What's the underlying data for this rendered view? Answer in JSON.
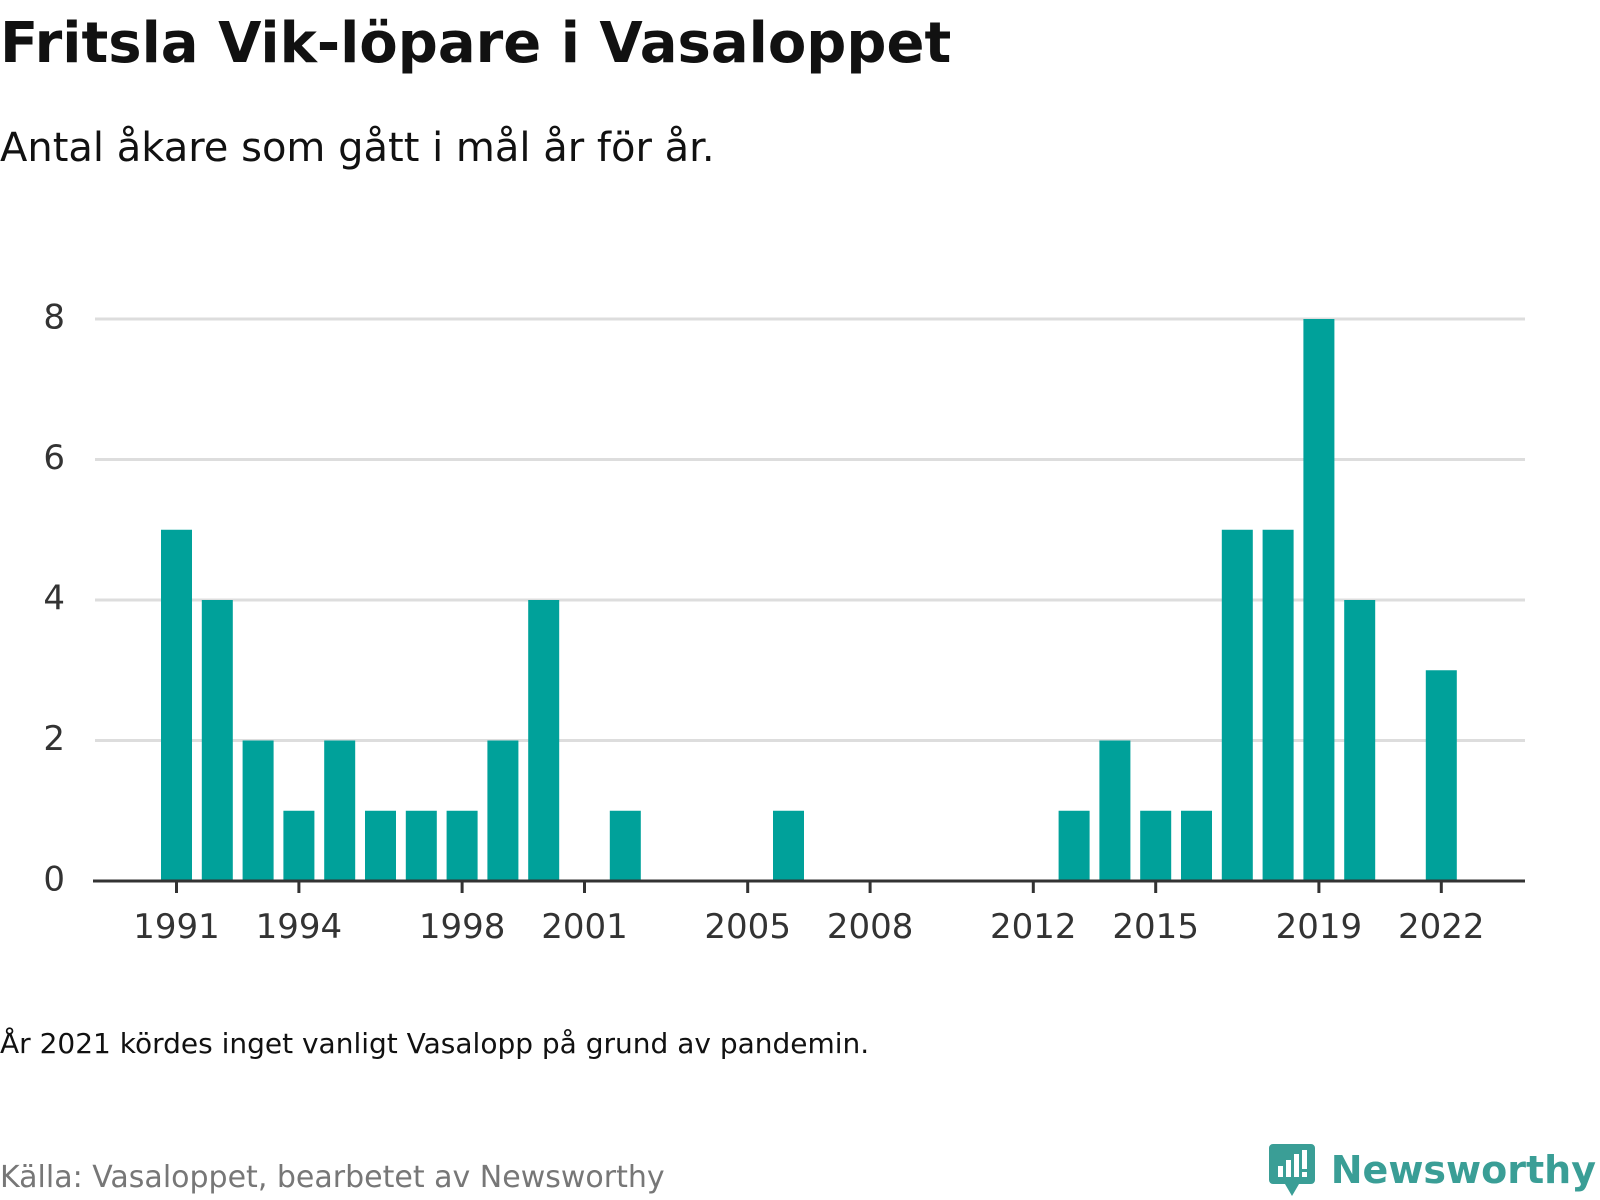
{
  "title": "Fritsla Vik-löpare i Vasaloppet",
  "subtitle": "Antal åkare som gått i mål år för år.",
  "note": "År 2021 kördes inget vanligt Vasalopp på grund av pandemin.",
  "source": "Källa: Vasaloppet, bearbetet av Newsworthy",
  "brand": {
    "name": "Newsworthy",
    "icon": "newsworthy-logo-icon",
    "color": "#3a9e96"
  },
  "colors": {
    "bar": "#00a19a",
    "grid": "#dddddd",
    "axis": "#333333",
    "tick_text": "#333333"
  },
  "chart_data": {
    "type": "bar",
    "title": "Fritsla Vik-löpare i Vasaloppet",
    "subtitle": "Antal åkare som gått i mål år för år.",
    "xlabel": "",
    "ylabel": "",
    "categories": [
      1991,
      1992,
      1993,
      1994,
      1995,
      1996,
      1997,
      1998,
      1999,
      2000,
      2001,
      2002,
      2003,
      2004,
      2005,
      2006,
      2007,
      2008,
      2009,
      2010,
      2011,
      2012,
      2013,
      2014,
      2015,
      2016,
      2017,
      2018,
      2019,
      2020,
      2021,
      2022
    ],
    "values": [
      5,
      4,
      2,
      1,
      2,
      1,
      1,
      1,
      2,
      4,
      0,
      1,
      0,
      0,
      0,
      1,
      0,
      0,
      0,
      0,
      0,
      0,
      1,
      2,
      1,
      1,
      5,
      5,
      8,
      4,
      0,
      3
    ],
    "x_tick_labels": [
      "1991",
      "1994",
      "1998",
      "2001",
      "2005",
      "2008",
      "2012",
      "2015",
      "2019",
      "2022"
    ],
    "y_ticks": [
      0,
      2,
      4,
      6,
      8
    ],
    "ylim": [
      0,
      8
    ],
    "grid": true,
    "legend": "none"
  }
}
